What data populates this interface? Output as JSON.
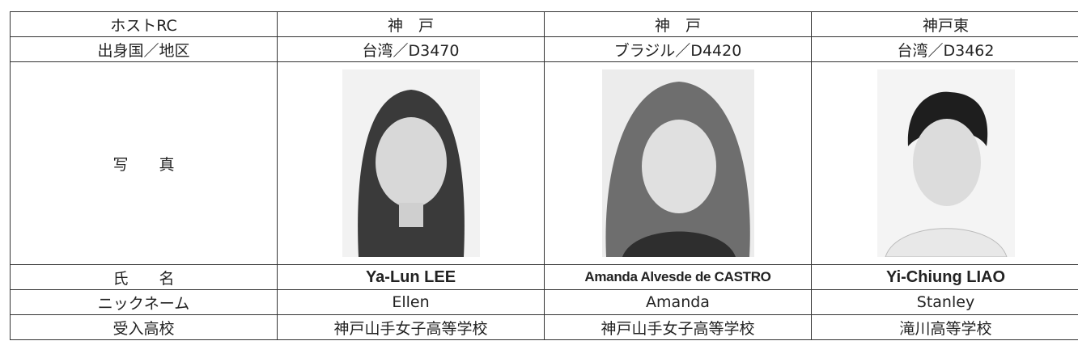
{
  "table": {
    "rows": [
      {
        "label": "ホストRC",
        "cells": [
          "神　戸",
          "神　戸",
          "神戸東"
        ]
      },
      {
        "label": "出身国／地区",
        "cells": [
          "台湾／D3470",
          "ブラジル／D4420",
          "台湾／D3462"
        ]
      },
      {
        "label": "写　　真"
      },
      {
        "label": "氏　　名",
        "cells": [
          "Ya-Lun LEE",
          "Amanda Alvesde de CASTRO",
          "Yi-Chiung LIAO"
        ]
      },
      {
        "label": "ニックネーム",
        "cells": [
          "Ellen",
          "Amanda",
          "Stanley"
        ]
      },
      {
        "label": "受入高校",
        "cells": [
          "神戸山手女子高等学校",
          "神戸山手女子高等学校",
          "滝川高等学校"
        ]
      }
    ]
  }
}
